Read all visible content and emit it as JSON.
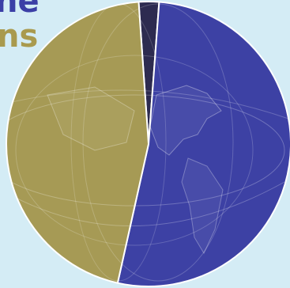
{
  "title_fragments": [
    {
      "text": "ne",
      "color": "#3b3fa6"
    },
    {
      "text": "ns",
      "color": "#a99a4e"
    }
  ],
  "chart_data": {
    "type": "pie",
    "title": "",
    "start_angle_deg": -4,
    "slices": [
      {
        "value": 2.3,
        "color": "#2d2b50"
      },
      {
        "value": 52.3,
        "color": "#3d41a4"
      },
      {
        "value": 45.4,
        "color": "#a69a55"
      }
    ]
  }
}
